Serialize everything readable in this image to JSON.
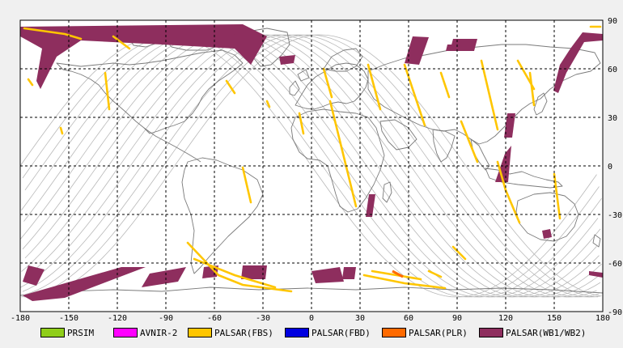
{
  "map": {
    "type": "equirectangular-world-map",
    "x_ticks": [
      "-180",
      "-150",
      "-120",
      "-90",
      "-60",
      "-30",
      "0",
      "30",
      "60",
      "90",
      "120",
      "150",
      "180"
    ],
    "y_ticks": [
      "90",
      "60",
      "30",
      "0",
      "-30",
      "-60",
      "-90"
    ]
  },
  "legend": [
    {
      "label": "PRSIM",
      "color": "#8fce1a"
    },
    {
      "label": "AVNIR-2",
      "color": "#ff00ff"
    },
    {
      "label": "PALSAR(FBS)",
      "color": "#ffc600"
    },
    {
      "label": "PALSAR(FBD)",
      "color": "#0000e0"
    },
    {
      "label": "PALSAR(PLR)",
      "color": "#ff6a00"
    },
    {
      "label": "PALSAR(WB1/WB2)",
      "color": "#8e2e5e"
    }
  ]
}
